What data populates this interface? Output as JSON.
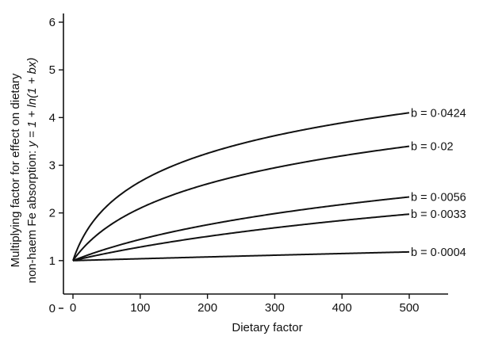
{
  "chart_data": {
    "type": "line",
    "function": "y = 1 + ln(1 + bx)",
    "xlabel": "Dietary factor",
    "ylabel_line1": "Multiplying factor for effect on dietary",
    "ylabel_line2_prefix": "non-haem Fe absorption: ",
    "ylabel_line2_formula": "y = 1 + ln(1 + bx)",
    "xlim": [
      0,
      500
    ],
    "ylim": [
      0,
      6
    ],
    "x_ticks": [
      0,
      100,
      200,
      300,
      400,
      500
    ],
    "y_ticks": [
      0,
      1,
      2,
      3,
      4,
      5,
      6
    ],
    "x_tick_labels": [
      "0",
      "100",
      "200",
      "300",
      "400",
      "500"
    ],
    "y_tick_labels": [
      "0",
      "1",
      "2",
      "3",
      "4",
      "5",
      "6"
    ],
    "grid": false,
    "series": [
      {
        "name": "b = 0·0424",
        "b": 0.0424
      },
      {
        "name": "b = 0·02",
        "b": 0.02
      },
      {
        "name": "b = 0·0056",
        "b": 0.0056
      },
      {
        "name": "b = 0·0033",
        "b": 0.0033
      },
      {
        "name": "b = 0·0004",
        "b": 0.0004
      }
    ]
  }
}
